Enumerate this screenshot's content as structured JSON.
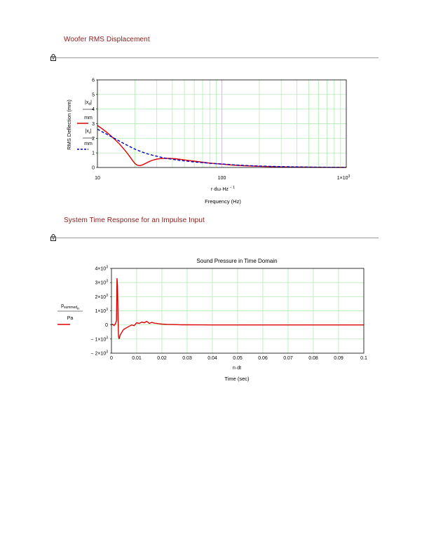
{
  "sections": [
    {
      "title": "Woofer RMS Displacement"
    },
    {
      "title": "System Time Response for an Impulse Input"
    }
  ],
  "chart_data": [
    {
      "type": "line",
      "title": "",
      "xscale": "log",
      "xlim": [
        10,
        1000
      ],
      "ylim": [
        0,
        6
      ],
      "grid": true,
      "x_ticks": [
        "10",
        "100",
        "1×10³"
      ],
      "y_ticks": [
        "0",
        "1",
        "2",
        "3",
        "4",
        "5",
        "6"
      ],
      "xlabel_expr": "r·dω·Hz⁻¹",
      "xlabel": "Frequency (Hz)",
      "ylabel": "RMS Deflection (mm)",
      "legend": [
        {
          "num": "|x_d|",
          "den": "mm",
          "color": "#dd0000",
          "style": "solid"
        },
        {
          "num": "|x_r|",
          "den": "mm",
          "color": "#0000cc",
          "style": "dashed"
        }
      ],
      "series": [
        {
          "color": "#dd0000",
          "style": "solid",
          "x": [
            10,
            11,
            12,
            13,
            14,
            15,
            16,
            17,
            18,
            19,
            20,
            21,
            22,
            23,
            24,
            25,
            26,
            27,
            28,
            30,
            32,
            35,
            38,
            42,
            46,
            50,
            55,
            60,
            70,
            80,
            90,
            100,
            120,
            150,
            200,
            300,
            500,
            700,
            1000
          ],
          "y": [
            2.88,
            2.63,
            2.38,
            2.12,
            1.87,
            1.62,
            1.35,
            1.08,
            0.8,
            0.52,
            0.28,
            0.15,
            0.13,
            0.18,
            0.25,
            0.33,
            0.4,
            0.46,
            0.51,
            0.57,
            0.61,
            0.63,
            0.62,
            0.6,
            0.56,
            0.52,
            0.47,
            0.43,
            0.36,
            0.3,
            0.26,
            0.23,
            0.17,
            0.12,
            0.08,
            0.04,
            0.02,
            0.01,
            0.005
          ]
        },
        {
          "color": "#0000cc",
          "style": "dashed",
          "x": [
            10,
            12,
            14,
            16,
            18,
            20,
            23,
            26,
            30,
            35,
            40,
            45,
            50,
            60,
            70,
            80,
            90,
            100,
            120,
            150,
            200,
            300,
            500,
            700,
            1000
          ],
          "y": [
            2.62,
            2.26,
            1.95,
            1.68,
            1.45,
            1.26,
            1.05,
            0.9,
            0.77,
            0.64,
            0.56,
            0.5,
            0.45,
            0.38,
            0.33,
            0.29,
            0.26,
            0.24,
            0.19,
            0.14,
            0.1,
            0.06,
            0.03,
            0.015,
            0.01
          ]
        }
      ]
    },
    {
      "type": "line",
      "title": "Sound Pressure in Time Domain",
      "xlim": [
        0,
        0.1
      ],
      "ylim": [
        -2000,
        4000
      ],
      "grid": true,
      "x_ticks": [
        "0",
        "0.01",
        "0.02",
        "0.03",
        "0.04",
        "0.05",
        "0.06",
        "0.07",
        "0.08",
        "0.09",
        "0.1"
      ],
      "y_ticks": [
        {
          "base": "4×10",
          "exp": "3"
        },
        {
          "base": "3×10",
          "exp": "3"
        },
        {
          "base": "2×10",
          "exp": "3"
        },
        {
          "base": "1×10",
          "exp": "3"
        },
        {
          "base": "0",
          "exp": ""
        },
        {
          "base": "− 1×10",
          "exp": "3"
        },
        {
          "base": "− 2×10",
          "exp": "3"
        }
      ],
      "xlabel_expr": "n·dt",
      "xlabel": "Time (sec)",
      "legend": [
        {
          "num": "p",
          "num_sub": "summed",
          "num_sub2": "n",
          "den": "Pa",
          "color": "#dd0000",
          "style": "solid"
        }
      ],
      "series": [
        {
          "color": "#dd0000",
          "style": "solid",
          "x": [
            0,
            0.0005,
            0.001,
            0.0015,
            0.002,
            0.0022,
            0.0024,
            0.0026,
            0.0028,
            0.003,
            0.0035,
            0.004,
            0.0045,
            0.005,
            0.006,
            0.007,
            0.008,
            0.009,
            0.01,
            0.011,
            0.012,
            0.013,
            0.014,
            0.015,
            0.016,
            0.017,
            0.018,
            0.019,
            0.02,
            0.022,
            0.024,
            0.026,
            0.028,
            0.03,
            0.035,
            0.04,
            0.05,
            0.06,
            0.07,
            0.08,
            0.09,
            0.1
          ],
          "y": [
            0,
            50,
            -40,
            60,
            300,
            3300,
            2800,
            600,
            -800,
            -1000,
            -700,
            -550,
            -400,
            -300,
            -200,
            -100,
            0,
            -50,
            150,
            100,
            200,
            150,
            250,
            100,
            180,
            120,
            100,
            80,
            60,
            40,
            30,
            20,
            10,
            10,
            5,
            0,
            0,
            0,
            0,
            0,
            0,
            0
          ]
        }
      ]
    }
  ]
}
